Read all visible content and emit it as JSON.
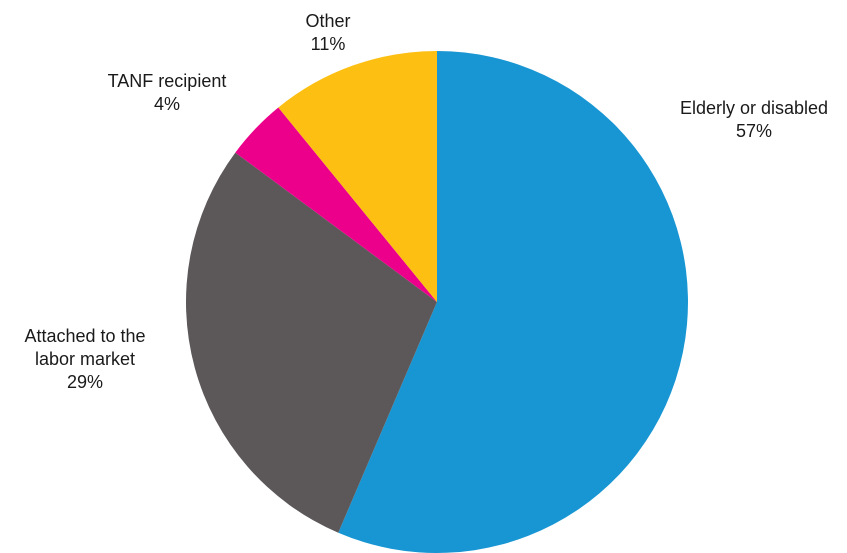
{
  "chart_data": {
    "type": "pie",
    "title": "",
    "start_angle_deg": 0,
    "direction": "clockwise",
    "slices": [
      {
        "label": "Elderly or disabled",
        "label_lines": [
          "Elderly or disabled"
        ],
        "value": 57,
        "value_label": "57%",
        "color": "#1896d3"
      },
      {
        "label": "Attached to the labor market",
        "label_lines": [
          "Attached to the",
          "labor market"
        ],
        "value": 29,
        "value_label": "29%",
        "color": "#5c5859"
      },
      {
        "label": "TANF recipient",
        "label_lines": [
          "TANF recipient"
        ],
        "value": 4,
        "value_label": "4%",
        "color": "#ec008b"
      },
      {
        "label": "Other",
        "label_lines": [
          "Other"
        ],
        "value": 11,
        "value_label": "11%",
        "color": "#fdbf11"
      }
    ]
  }
}
